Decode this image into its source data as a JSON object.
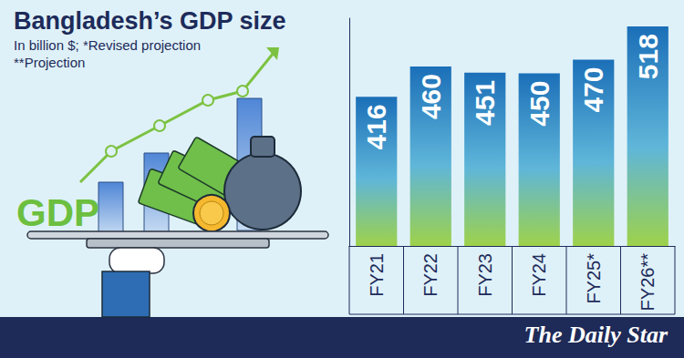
{
  "chart_data": {
    "type": "bar",
    "title": "Bangladesh’s GDP size",
    "subtitle": [
      "In billion $; *Revised projection",
      "**Projection"
    ],
    "categories": [
      "FY21",
      "FY22",
      "FY23",
      "FY24",
      "FY25*",
      "FY26**"
    ],
    "values": [
      416,
      460,
      451,
      450,
      470,
      518
    ],
    "color": "#1b6fb8",
    "ylim": [
      200,
      530
    ],
    "yticks": [],
    "data_labels": true,
    "tick_labels": "x",
    "annotations": [
      "GDP",
      "The Daily Star"
    ]
  }
}
